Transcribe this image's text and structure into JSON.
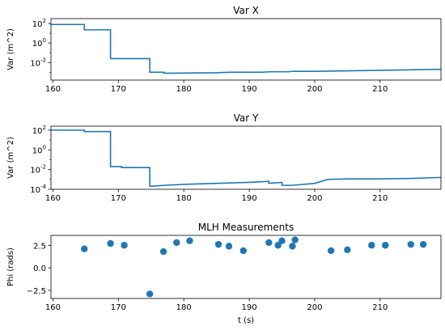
{
  "chart_data": [
    {
      "type": "line",
      "title": "Var X",
      "xlabel": "",
      "ylabel": "Var (m^2)",
      "xlim": [
        159.7,
        219.3
      ],
      "ylim_log10": [
        -3.8,
        2.5
      ],
      "yscale": "log",
      "xticks": [
        {
          "v": 160,
          "label": "160"
        },
        {
          "v": 170,
          "label": "170"
        },
        {
          "v": 180,
          "label": "180"
        },
        {
          "v": 190,
          "label": "190"
        },
        {
          "v": 200,
          "label": "200"
        },
        {
          "v": 210,
          "label": "210"
        }
      ],
      "yticks": [
        {
          "v": 2,
          "label": "10"
        },
        {
          "v": 0,
          "label": "10"
        },
        {
          "v": -2,
          "label": "10"
        }
      ],
      "yticks_sup": [
        "2",
        "0",
        "-2"
      ],
      "color": "#1f77b4",
      "series": [
        {
          "x": [
            159.7,
            164.8,
            164.8,
            168.8,
            168.8,
            174.8,
            174.8,
            177,
            177,
            185,
            187,
            192,
            193,
            196,
            196.6,
            200,
            205,
            210,
            219.3
          ],
          "y_log10": [
            1.9,
            1.9,
            1.35,
            1.35,
            -1.6,
            -1.6,
            -3.0,
            -3.0,
            -3.1,
            -3.05,
            -3.0,
            -3.0,
            -2.95,
            -2.95,
            -2.9,
            -2.9,
            -2.85,
            -2.8,
            -2.7
          ]
        }
      ]
    },
    {
      "type": "line",
      "title": "Var Y",
      "xlabel": "",
      "ylabel": "Var (m^2)",
      "xlim": [
        159.7,
        219.3
      ],
      "ylim_log10": [
        -4.0,
        2.4
      ],
      "yscale": "log",
      "xticks": [
        {
          "v": 160,
          "label": "160"
        },
        {
          "v": 170,
          "label": "170"
        },
        {
          "v": 180,
          "label": "180"
        },
        {
          "v": 190,
          "label": "190"
        },
        {
          "v": 200,
          "label": "200"
        },
        {
          "v": 210,
          "label": "210"
        }
      ],
      "yticks": [
        {
          "v": 2,
          "label": "10"
        },
        {
          "v": 0,
          "label": "10"
        },
        {
          "v": -2,
          "label": "10"
        },
        {
          "v": -4,
          "label": "10"
        }
      ],
      "yticks_sup": [
        "2",
        "0",
        "-2",
        "-4"
      ],
      "color": "#1f77b4",
      "series": [
        {
          "x": [
            159.7,
            164.8,
            164.8,
            168.8,
            168.8,
            170.5,
            170.5,
            174.8,
            174.8,
            177,
            180,
            185,
            190,
            193,
            193,
            195,
            195,
            196.6,
            200,
            202,
            205,
            210,
            215,
            219.3
          ],
          "y_log10": [
            2.0,
            2.0,
            1.85,
            1.85,
            -1.7,
            -1.7,
            -1.8,
            -1.8,
            -3.7,
            -3.6,
            -3.5,
            -3.4,
            -3.3,
            -3.2,
            -3.4,
            -3.3,
            -3.6,
            -3.6,
            -3.4,
            -3.0,
            -2.95,
            -2.95,
            -2.9,
            -2.8
          ]
        }
      ]
    },
    {
      "type": "scatter",
      "title": "MLH Measurements",
      "xlabel": "t (s)",
      "ylabel": "Phi (rads)",
      "xlim": [
        159.7,
        219.3
      ],
      "ylim": [
        -3.4,
        3.6
      ],
      "xticks": [
        {
          "v": 160,
          "label": "160"
        },
        {
          "v": 170,
          "label": "170"
        },
        {
          "v": 180,
          "label": "180"
        },
        {
          "v": 190,
          "label": "190"
        },
        {
          "v": 200,
          "label": "200"
        },
        {
          "v": 210,
          "label": "210"
        }
      ],
      "yticks": [
        {
          "v": 2.5,
          "label": "2.5"
        },
        {
          "v": 0,
          "label": "0.0"
        },
        {
          "v": -2.5,
          "label": "−2.5"
        }
      ],
      "color": "#1f77b4",
      "points": [
        {
          "x": 164.8,
          "y": 2.1
        },
        {
          "x": 168.8,
          "y": 2.7
        },
        {
          "x": 170.9,
          "y": 2.5
        },
        {
          "x": 174.8,
          "y": -2.9
        },
        {
          "x": 176.9,
          "y": 1.8
        },
        {
          "x": 178.9,
          "y": 2.8
        },
        {
          "x": 180.9,
          "y": 3.0
        },
        {
          "x": 185.3,
          "y": 2.6
        },
        {
          "x": 186.9,
          "y": 2.4
        },
        {
          "x": 189.1,
          "y": 1.9
        },
        {
          "x": 193.0,
          "y": 2.8
        },
        {
          "x": 194.4,
          "y": 2.5
        },
        {
          "x": 195.0,
          "y": 3.0
        },
        {
          "x": 196.6,
          "y": 2.4
        },
        {
          "x": 197.0,
          "y": 3.1
        },
        {
          "x": 202.5,
          "y": 1.9
        },
        {
          "x": 205.0,
          "y": 2.0
        },
        {
          "x": 208.7,
          "y": 2.5
        },
        {
          "x": 210.8,
          "y": 2.5
        },
        {
          "x": 214.7,
          "y": 2.6
        },
        {
          "x": 216.6,
          "y": 2.6
        }
      ]
    }
  ]
}
